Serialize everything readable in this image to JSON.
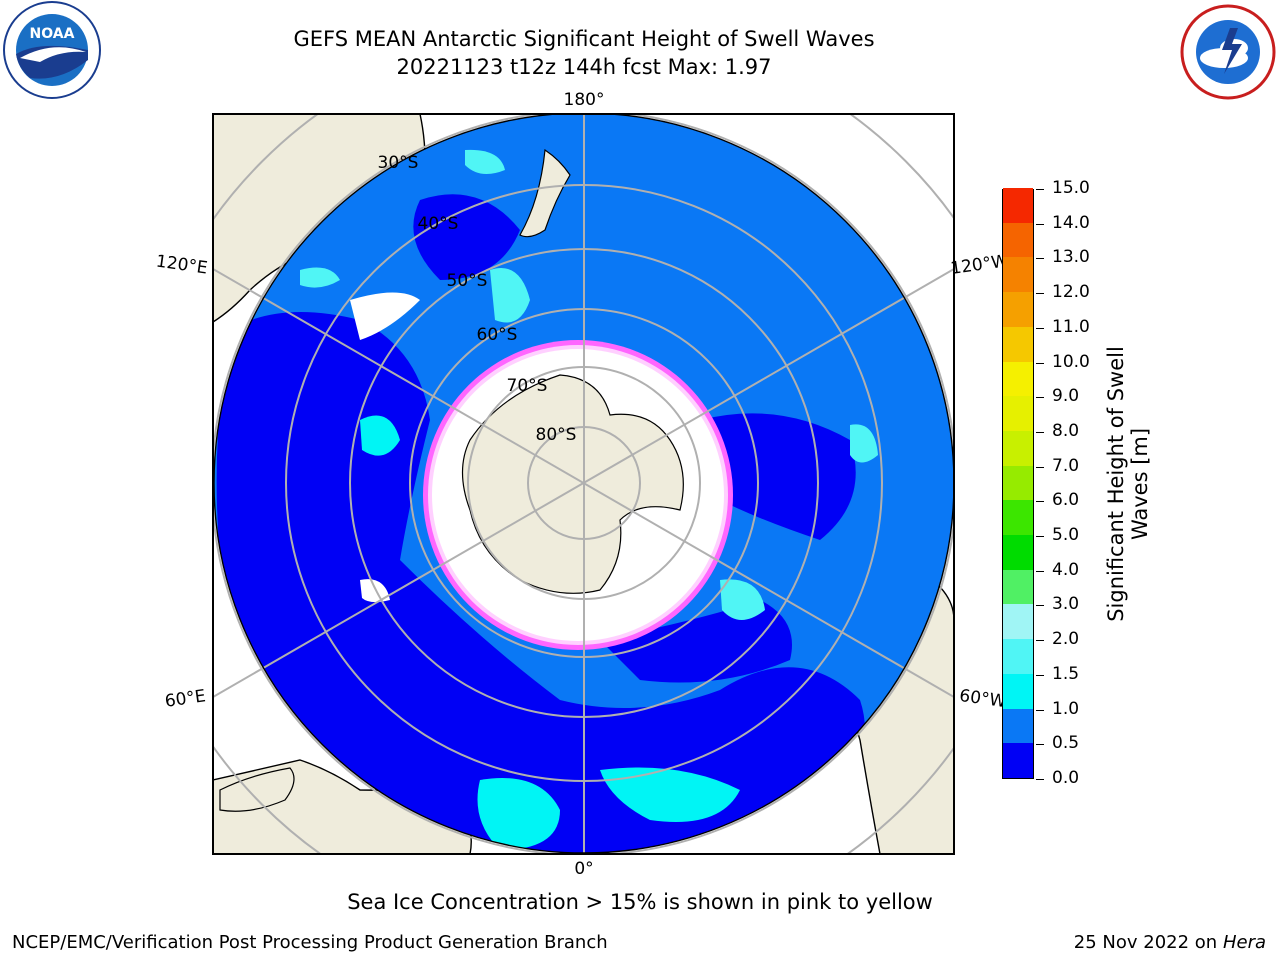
{
  "title": {
    "line1": "GEFS MEAN Antarctic Significant Height of Swell Waves",
    "line2": "20221123 t12z 144h fcst   Max: 1.97"
  },
  "map": {
    "projection": "south-polar-stereographic",
    "colors": {
      "land": "#efecdc",
      "ocean_low": "#0000f5",
      "ocean_mid": "#0a78f5",
      "ocean_high": "#00f5f5",
      "ice": "#ffffff",
      "grid": "#b0b0b0"
    },
    "longitude_labels": {
      "top": "180°",
      "bottom": "0°",
      "upper_left": "120°E",
      "upper_right": "120°W",
      "lower_left": "60°E",
      "lower_right": "60°W"
    },
    "latitude_labels": [
      "30°S",
      "40°S",
      "50°S",
      "60°S",
      "70°S",
      "80°S"
    ]
  },
  "colorbar": {
    "label": "Significant Height of Swell Waves [m]",
    "label_line1": "Significant Height of Swell",
    "label_line2": "Waves [m]",
    "ticks": [
      "0.0",
      "0.5",
      "1.0",
      "1.5",
      "2.0",
      "3.0",
      "4.0",
      "5.0",
      "6.0",
      "7.0",
      "8.0",
      "9.0",
      "10.0",
      "11.0",
      "12.0",
      "13.0",
      "14.0",
      "15.0"
    ],
    "colors": [
      "#0000f5",
      "#0a78f5",
      "#00f5f5",
      "#50f5f5",
      "#a0f5f5",
      "#50f064",
      "#00dc00",
      "#3ce600",
      "#96eb00",
      "#c8f000",
      "#e6f000",
      "#f5f000",
      "#f5c800",
      "#f5a000",
      "#f58200",
      "#f56400",
      "#f52800"
    ]
  },
  "footer": {
    "note": "Sea Ice Concentration > 15% is shown in pink to yellow",
    "credit": "NCEP/EMC/Verification Post Processing Product Generation Branch",
    "date": "25 Nov 2022 on",
    "host": "Hera"
  },
  "logos": {
    "left": "NOAA",
    "right": "NATIONAL WEATHER SERVICE"
  }
}
